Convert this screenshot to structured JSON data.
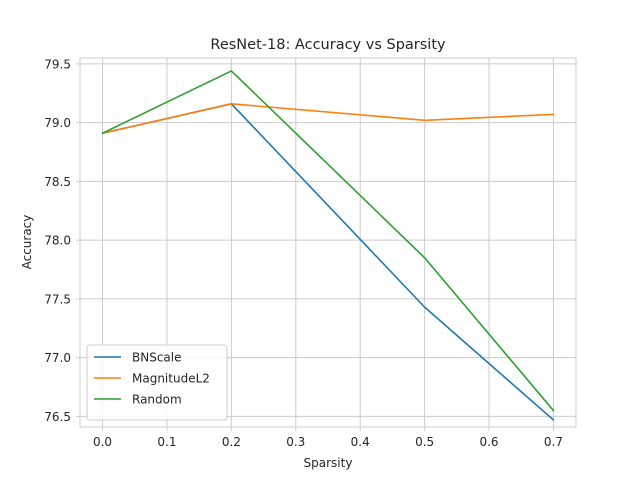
{
  "chart_data": {
    "type": "line",
    "title": "ResNet-18: Accuracy vs Sparsity",
    "xlabel": "Sparsity",
    "ylabel": "Accuracy",
    "x": [
      0.0,
      0.2,
      0.5,
      0.7
    ],
    "xlim": [
      -0.035,
      0.735
    ],
    "ylim": [
      76.41,
      79.55
    ],
    "xticks": [
      0.0,
      0.1,
      0.2,
      0.3,
      0.4,
      0.5,
      0.6,
      0.7
    ],
    "xtick_labels": [
      "0.0",
      "0.1",
      "0.2",
      "0.3",
      "0.4",
      "0.5",
      "0.6",
      "0.7"
    ],
    "yticks": [
      76.5,
      77.0,
      77.5,
      78.0,
      78.5,
      79.0,
      79.5
    ],
    "ytick_labels": [
      "76.5",
      "77.0",
      "77.5",
      "78.0",
      "78.5",
      "79.0",
      "79.5"
    ],
    "grid": true,
    "legend_position": "bottom-left",
    "series": [
      {
        "name": "BNScale",
        "color": "#1f77b4",
        "values": [
          78.91,
          79.16,
          77.43,
          76.47
        ]
      },
      {
        "name": "MagnitudeL2",
        "color": "#ff7f0e",
        "values": [
          78.91,
          79.16,
          79.02,
          79.07
        ]
      },
      {
        "name": "Random",
        "color": "#2ca02c",
        "values": [
          78.91,
          79.44,
          77.85,
          76.55
        ]
      }
    ]
  }
}
